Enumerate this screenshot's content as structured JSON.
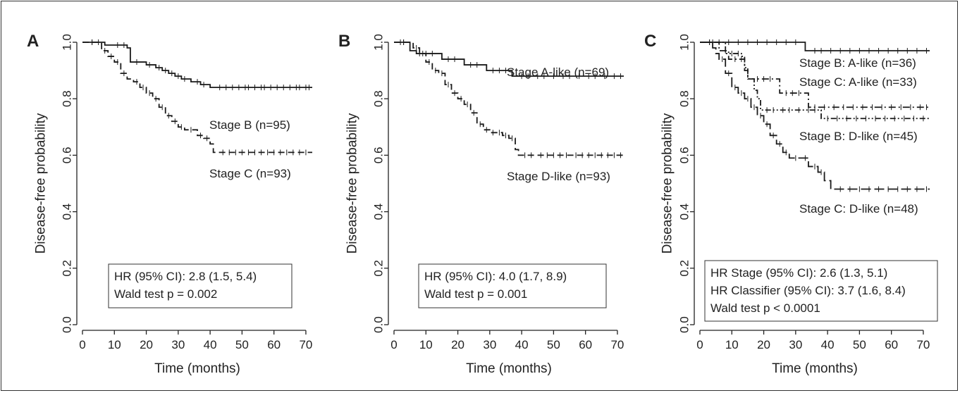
{
  "chart_data": [
    {
      "type": "line",
      "subtype": "kaplan-meier",
      "panel_label": "A",
      "xlabel": "Time (months)",
      "ylabel": "Disease-free probability",
      "xlim": [
        0,
        72
      ],
      "ylim": [
        0,
        1
      ],
      "x_ticks": [
        0,
        10,
        20,
        30,
        40,
        50,
        60,
        70
      ],
      "y_ticks": [
        "0.0",
        "0.2",
        "0.4",
        "0.6",
        "0.8",
        "1.0"
      ],
      "grid": false,
      "series": [
        {
          "name": "Stage B  (n=95)",
          "line_style": "solid",
          "points": [
            [
              0,
              1.0
            ],
            [
              6,
              1.0
            ],
            [
              7,
              0.99
            ],
            [
              12,
              0.99
            ],
            [
              14,
              0.98
            ],
            [
              15,
              0.93
            ],
            [
              19,
              0.93
            ],
            [
              20,
              0.92
            ],
            [
              22,
              0.92
            ],
            [
              23,
              0.91
            ],
            [
              25,
              0.9
            ],
            [
              27,
              0.89
            ],
            [
              29,
              0.88
            ],
            [
              31,
              0.87
            ],
            [
              33,
              0.87
            ],
            [
              34,
              0.86
            ],
            [
              35,
              0.86
            ],
            [
              37,
              0.85
            ],
            [
              39,
              0.85
            ],
            [
              40,
              0.84
            ],
            [
              72,
              0.84
            ]
          ],
          "censor_x": [
            3,
            5,
            11,
            13,
            17,
            21,
            24,
            26,
            28,
            30,
            32,
            36,
            38,
            43,
            45,
            47,
            49,
            51,
            52,
            54,
            56,
            57,
            59,
            61,
            63,
            65,
            67,
            68,
            70,
            71
          ]
        },
        {
          "name": "Stage C (n=93)",
          "line_style": "dashed",
          "points": [
            [
              0,
              1.0
            ],
            [
              5,
              1.0
            ],
            [
              6,
              0.97
            ],
            [
              8,
              0.95
            ],
            [
              10,
              0.93
            ],
            [
              12,
              0.89
            ],
            [
              14,
              0.87
            ],
            [
              16,
              0.86
            ],
            [
              18,
              0.84
            ],
            [
              20,
              0.82
            ],
            [
              22,
              0.8
            ],
            [
              24,
              0.77
            ],
            [
              26,
              0.74
            ],
            [
              28,
              0.72
            ],
            [
              30,
              0.7
            ],
            [
              32,
              0.69
            ],
            [
              36,
              0.67
            ],
            [
              38,
              0.66
            ],
            [
              40,
              0.64
            ],
            [
              41,
              0.61
            ],
            [
              72,
              0.61
            ]
          ],
          "censor_x": [
            3,
            7,
            9,
            11,
            13,
            17,
            19,
            21,
            23,
            25,
            27,
            29,
            31,
            34,
            37,
            39,
            44,
            46,
            48,
            50,
            52,
            54,
            56,
            58,
            60,
            62,
            64,
            66,
            68,
            70
          ]
        }
      ],
      "stats": [
        "HR (95% CI): 2.8 (1.5, 5.4)",
        "Wald test p = 0.002"
      ]
    },
    {
      "type": "line",
      "subtype": "kaplan-meier",
      "panel_label": "B",
      "xlabel": "Time (months)",
      "ylabel": "Disease-free probability",
      "xlim": [
        0,
        72
      ],
      "ylim": [
        0,
        1
      ],
      "x_ticks": [
        0,
        10,
        20,
        30,
        40,
        50,
        60,
        70
      ],
      "y_ticks": [
        "0.0",
        "0.2",
        "0.4",
        "0.6",
        "0.8",
        "1.0"
      ],
      "grid": false,
      "series": [
        {
          "name": "Stage A-like  (n=69)",
          "line_style": "solid",
          "points": [
            [
              0,
              1.0
            ],
            [
              4,
              1.0
            ],
            [
              5,
              0.97
            ],
            [
              7,
              0.96
            ],
            [
              14,
              0.96
            ],
            [
              15,
              0.94
            ],
            [
              21,
              0.94
            ],
            [
              22,
              0.92
            ],
            [
              28,
              0.92
            ],
            [
              29,
              0.9
            ],
            [
              36,
              0.9
            ],
            [
              37,
              0.88
            ],
            [
              72,
              0.88
            ]
          ],
          "censor_x": [
            2,
            3,
            8,
            10,
            12,
            17,
            19,
            24,
            26,
            31,
            33,
            35,
            40,
            42,
            45,
            47,
            50,
            53,
            55,
            58,
            61,
            63,
            66,
            69,
            71
          ]
        },
        {
          "name": "Stage D-like (n=93)",
          "line_style": "dashed",
          "points": [
            [
              0,
              1.0
            ],
            [
              5,
              1.0
            ],
            [
              6,
              0.98
            ],
            [
              8,
              0.96
            ],
            [
              10,
              0.93
            ],
            [
              12,
              0.9
            ],
            [
              14,
              0.89
            ],
            [
              16,
              0.85
            ],
            [
              18,
              0.82
            ],
            [
              20,
              0.8
            ],
            [
              22,
              0.78
            ],
            [
              24,
              0.75
            ],
            [
              26,
              0.71
            ],
            [
              28,
              0.69
            ],
            [
              30,
              0.68
            ],
            [
              34,
              0.67
            ],
            [
              36,
              0.66
            ],
            [
              38,
              0.62
            ],
            [
              39,
              0.6
            ],
            [
              72,
              0.6
            ]
          ],
          "censor_x": [
            3,
            7,
            9,
            11,
            13,
            15,
            17,
            19,
            21,
            23,
            25,
            27,
            29,
            31,
            33,
            35,
            37,
            41,
            43,
            46,
            48,
            50,
            52,
            54,
            57,
            59,
            61,
            63,
            65,
            67,
            69,
            71
          ]
        }
      ],
      "stats": [
        "HR (95% CI): 4.0 (1.7, 8.9)",
        "Wald test p = 0.001"
      ]
    },
    {
      "type": "line",
      "subtype": "kaplan-meier",
      "panel_label": "C",
      "xlabel": "Time (months)",
      "ylabel": "Disease-free probability",
      "xlim": [
        0,
        72
      ],
      "ylim": [
        0,
        1
      ],
      "x_ticks": [
        0,
        10,
        20,
        30,
        40,
        50,
        60,
        70
      ],
      "y_ticks": [
        "0.0",
        "0.2",
        "0.4",
        "0.6",
        "0.8",
        "1.0"
      ],
      "grid": false,
      "series": [
        {
          "name": "Stage B: A-like (n=36)",
          "line_style": "solid",
          "points": [
            [
              0,
              1.0
            ],
            [
              32,
              1.0
            ],
            [
              33,
              0.97
            ],
            [
              72,
              0.97
            ]
          ],
          "censor_x": [
            3,
            6,
            9,
            12,
            15,
            18,
            21,
            24,
            27,
            30,
            36,
            38,
            41,
            44,
            47,
            50,
            53,
            56,
            59,
            62,
            65,
            68,
            71
          ]
        },
        {
          "name": "Stage C: A-like (n=33)",
          "line_style": "dashdot",
          "points": [
            [
              0,
              1.0
            ],
            [
              5,
              1.0
            ],
            [
              6,
              0.97
            ],
            [
              9,
              0.94
            ],
            [
              14,
              0.9
            ],
            [
              15,
              0.87
            ],
            [
              24,
              0.87
            ],
            [
              25,
              0.82
            ],
            [
              33,
              0.82
            ],
            [
              34,
              0.77
            ],
            [
              72,
              0.77
            ]
          ],
          "censor_x": [
            3,
            8,
            11,
            13,
            18,
            20,
            22,
            27,
            29,
            31,
            36,
            39,
            42,
            45,
            48,
            51,
            54,
            57,
            60,
            63,
            66,
            69,
            71
          ]
        },
        {
          "name": "Stage B: D-like (n=45)",
          "line_style": "dashdotdot",
          "points": [
            [
              0,
              1.0
            ],
            [
              7,
              1.0
            ],
            [
              8,
              0.96
            ],
            [
              13,
              0.95
            ],
            [
              14,
              0.91
            ],
            [
              15,
              0.87
            ],
            [
              17,
              0.83
            ],
            [
              18,
              0.8
            ],
            [
              19,
              0.76
            ],
            [
              37,
              0.76
            ],
            [
              38,
              0.73
            ],
            [
              72,
              0.73
            ]
          ],
          "censor_x": [
            4,
            10,
            12,
            21,
            23,
            26,
            28,
            31,
            34,
            36,
            40,
            43,
            46,
            49,
            52,
            55,
            58,
            61,
            64,
            67,
            70
          ]
        },
        {
          "name": "Stage C: D-like (n=48)",
          "line_style": "longdash",
          "points": [
            [
              0,
              1.0
            ],
            [
              3,
              1.0
            ],
            [
              4,
              0.98
            ],
            [
              5,
              0.96
            ],
            [
              6,
              0.94
            ],
            [
              8,
              0.89
            ],
            [
              10,
              0.84
            ],
            [
              12,
              0.82
            ],
            [
              14,
              0.8
            ],
            [
              16,
              0.77
            ],
            [
              18,
              0.74
            ],
            [
              20,
              0.71
            ],
            [
              22,
              0.67
            ],
            [
              24,
              0.64
            ],
            [
              26,
              0.61
            ],
            [
              28,
              0.59
            ],
            [
              32,
              0.59
            ],
            [
              34,
              0.56
            ],
            [
              37,
              0.54
            ],
            [
              39,
              0.51
            ],
            [
              41,
              0.48
            ],
            [
              72,
              0.48
            ]
          ],
          "censor_x": [
            7,
            9,
            11,
            13,
            15,
            17,
            19,
            21,
            23,
            25,
            27,
            30,
            33,
            36,
            38,
            44,
            47,
            50,
            53,
            56,
            59,
            62,
            65,
            68,
            71
          ]
        }
      ],
      "stats": [
        "HR Stage (95% CI): 2.6 (1.3, 5.1)",
        "HR Classifier (95% CI): 3.7 (1.6, 8.4)",
        "Wald test p < 0.0001"
      ]
    }
  ]
}
